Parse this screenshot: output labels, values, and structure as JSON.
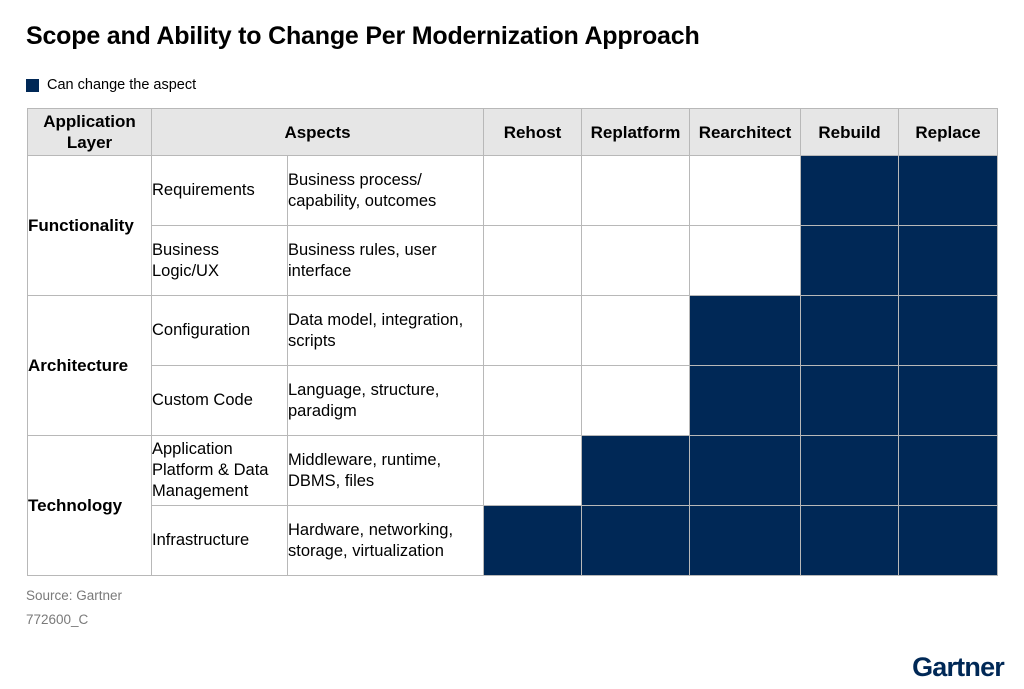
{
  "title": "Scope and Ability to Change Per Modernization Approach",
  "legend": {
    "label": "Can change the aspect",
    "color": "#002856"
  },
  "chart_data": {
    "type": "table",
    "headers": {
      "layer": "Application Layer",
      "aspects": "Aspects",
      "approaches": [
        "Rehost",
        "Replatform",
        "Rearchitect",
        "Rebuild",
        "Replace"
      ]
    },
    "groups": [
      {
        "layer": "Functionality",
        "rows": [
          {
            "aspect": "Requirements",
            "detail": "Business process/ capability, outcomes",
            "can_change": [
              false,
              false,
              false,
              true,
              true
            ]
          },
          {
            "aspect": "Business Logic/UX",
            "detail": "Business rules, user interface",
            "can_change": [
              false,
              false,
              false,
              true,
              true
            ]
          }
        ]
      },
      {
        "layer": "Architecture",
        "rows": [
          {
            "aspect": "Configuration",
            "detail": "Data model, integration, scripts",
            "can_change": [
              false,
              false,
              true,
              true,
              true
            ]
          },
          {
            "aspect": "Custom Code",
            "detail": "Language, structure, paradigm",
            "can_change": [
              false,
              false,
              true,
              true,
              true
            ]
          }
        ]
      },
      {
        "layer": "Technology",
        "rows": [
          {
            "aspect": "Application Platform & Data Management",
            "detail": "Middleware, runtime, DBMS, files",
            "can_change": [
              false,
              true,
              true,
              true,
              true
            ]
          },
          {
            "aspect": "Infrastructure",
            "detail": "Hardware, networking, storage, virtualization",
            "can_change": [
              true,
              true,
              true,
              true,
              true
            ]
          }
        ]
      }
    ]
  },
  "source": "Source: Gartner",
  "code": "772600_C",
  "logo": "Gartner"
}
